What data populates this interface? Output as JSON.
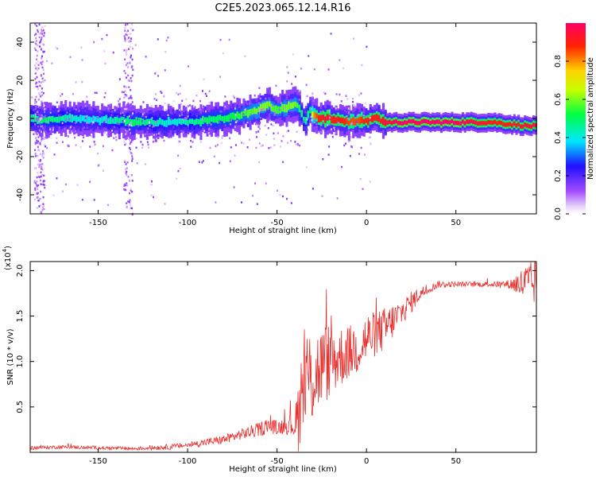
{
  "title": "C2E5.2023.065.12.14.R16",
  "chart_data": [
    {
      "type": "heatmap",
      "xlabel": "Height of straight line (km)",
      "ylabel": "Frequency (Hz)",
      "xlim": [
        -188,
        95
      ],
      "ylim": [
        -50,
        50
      ],
      "xticks": [
        -150,
        -100,
        -50,
        0,
        50
      ],
      "xtick_labels": [
        "-150",
        "-100",
        "-50",
        "0",
        "50"
      ],
      "yticks": [
        -40,
        -20,
        0,
        20,
        40
      ],
      "ytick_labels": [
        "-40",
        "-20",
        "0",
        "20",
        "40"
      ],
      "colorbar": {
        "label": "Normalized spectral amplitude",
        "range": [
          0,
          1
        ],
        "ticks": [
          0.0,
          0.2,
          0.4,
          0.6,
          0.8
        ],
        "tick_labels": [
          "0.0",
          "0.2",
          "0.4",
          "0.6",
          "0.8"
        ]
      },
      "ridge": {
        "x": [
          -188,
          -180,
          -170,
          -160,
          -150,
          -140,
          -130,
          -120,
          -110,
          -100,
          -90,
          -80,
          -70,
          -60,
          -55,
          -50,
          -45,
          -40,
          -38,
          -35,
          -32,
          -30,
          -25,
          -20,
          -15,
          -10,
          -5,
          0,
          5,
          10,
          20,
          30,
          40,
          50,
          60,
          70,
          80,
          90,
          95
        ],
        "y": [
          0,
          -1,
          0,
          0,
          -1,
          -1,
          -2,
          -2,
          -2,
          -2,
          -1,
          0,
          2,
          5,
          7,
          4,
          6,
          7,
          5,
          -2,
          4,
          1,
          0,
          0,
          -1,
          -2,
          -1,
          -1,
          0,
          -2,
          -2,
          -2,
          -2,
          -2,
          -2,
          -2,
          -3,
          -4,
          -4
        ],
        "amplitude": [
          0.45,
          0.5,
          0.45,
          0.4,
          0.4,
          0.45,
          0.5,
          0.45,
          0.4,
          0.45,
          0.5,
          0.5,
          0.55,
          0.6,
          0.6,
          0.55,
          0.6,
          0.6,
          0.5,
          0.45,
          0.5,
          0.8,
          0.95,
          0.9,
          0.9,
          0.85,
          0.85,
          0.9,
          0.9,
          0.95,
          1.0,
          1.0,
          1.0,
          1.0,
          0.95,
          0.9,
          0.9,
          0.95,
          0.95
        ]
      }
    },
    {
      "type": "line",
      "xlabel": "Height of straight line (km)",
      "ylabel": "SNR (10 * v/v)",
      "y_multiplier_label": "(x10",
      "y_multiplier_exp": "4",
      "xlim": [
        -188,
        95
      ],
      "ylim": [
        0,
        2.1
      ],
      "xticks": [
        -150,
        -100,
        -50,
        0,
        50
      ],
      "xtick_labels": [
        "-150",
        "-100",
        "-50",
        "0",
        "50"
      ],
      "yticks": [
        0.5,
        1.0,
        1.5,
        2.0
      ],
      "ytick_labels": [
        "0.5",
        "1.0",
        "1.5",
        "2.0"
      ],
      "color": "#e8312f",
      "series": [
        {
          "x": [
            -188,
            -170,
            -150,
            -130,
            -110,
            -100,
            -90,
            -80,
            -70,
            -60,
            -55,
            -50,
            -45,
            -40,
            -38,
            -36,
            -35,
            -33,
            -30,
            -27,
            -25,
            -22,
            -20,
            -15,
            -10,
            -5,
            0,
            5,
            10,
            15,
            20,
            25,
            30,
            35,
            40,
            50,
            60,
            70,
            80,
            85,
            90,
            95
          ],
          "values": [
            0.05,
            0.06,
            0.05,
            0.04,
            0.06,
            0.08,
            0.11,
            0.14,
            0.2,
            0.25,
            0.3,
            0.27,
            0.3,
            0.3,
            0.35,
            0.55,
            0.75,
            0.8,
            0.85,
            0.9,
            0.95,
            1.0,
            1.0,
            1.05,
            1.1,
            1.15,
            1.25,
            1.3,
            1.35,
            1.45,
            1.55,
            1.65,
            1.75,
            1.8,
            1.85,
            1.85,
            1.85,
            1.85,
            1.85,
            1.85,
            1.85,
            1.85
          ],
          "spread": [
            0.02,
            0.02,
            0.02,
            0.02,
            0.03,
            0.03,
            0.04,
            0.05,
            0.06,
            0.08,
            0.09,
            0.08,
            0.1,
            0.15,
            0.55,
            0.6,
            0.6,
            0.6,
            0.55,
            0.5,
            0.45,
            0.45,
            0.4,
            0.35,
            0.3,
            0.3,
            0.3,
            0.25,
            0.25,
            0.2,
            0.15,
            0.12,
            0.08,
            0.05,
            0.04,
            0.03,
            0.03,
            0.03,
            0.05,
            0.15,
            0.25,
            0.25
          ]
        }
      ]
    }
  ]
}
